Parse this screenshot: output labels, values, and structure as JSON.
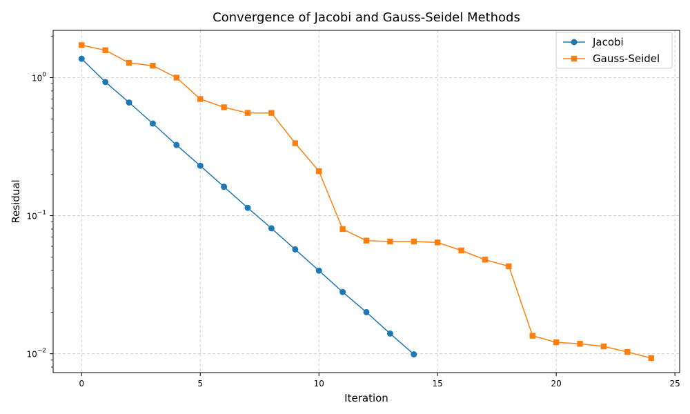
{
  "chart_data": {
    "type": "line",
    "title": "Convergence of Jacobi and Gauss-Seidel Methods",
    "xlabel": "Iteration",
    "ylabel": "Residual",
    "yscale": "log",
    "xlim": [
      -1.2,
      25.2
    ],
    "ylim": [
      0.0073,
      2.2
    ],
    "xticks": [
      0,
      5,
      10,
      15,
      20,
      25
    ],
    "xtick_labels": [
      "0",
      "5",
      "10",
      "15",
      "20",
      "25"
    ],
    "yticks": [
      0.01,
      0.1,
      1
    ],
    "ytick_labels": [
      "10",
      "10",
      "10"
    ],
    "ytick_exponents": [
      "−2",
      "−1",
      "0"
    ],
    "grid": true,
    "legend_position": "top-right",
    "series": [
      {
        "name": "Jacobi",
        "color": "#1f77b4",
        "marker": "circle",
        "x": [
          0,
          1,
          2,
          3,
          4,
          5,
          6,
          7,
          8,
          9,
          10,
          11,
          12,
          13,
          14
        ],
        "y": [
          1.37,
          0.93,
          0.66,
          0.465,
          0.325,
          0.23,
          0.162,
          0.114,
          0.081,
          0.057,
          0.04,
          0.028,
          0.02,
          0.014,
          0.0099
        ]
      },
      {
        "name": "Gauss-Seidel",
        "color": "#ff7f0e",
        "marker": "square",
        "x": [
          0,
          1,
          2,
          3,
          4,
          5,
          6,
          7,
          8,
          9,
          10,
          11,
          12,
          13,
          14,
          15,
          16,
          17,
          18,
          19,
          20,
          21,
          22,
          23,
          24
        ],
        "y": [
          1.72,
          1.58,
          1.28,
          1.22,
          1.0,
          0.7,
          0.61,
          0.555,
          0.555,
          0.335,
          0.21,
          0.08,
          0.066,
          0.065,
          0.065,
          0.064,
          0.056,
          0.048,
          0.043,
          0.0135,
          0.0121,
          0.0118,
          0.0113,
          0.0103,
          0.0093
        ]
      }
    ]
  }
}
